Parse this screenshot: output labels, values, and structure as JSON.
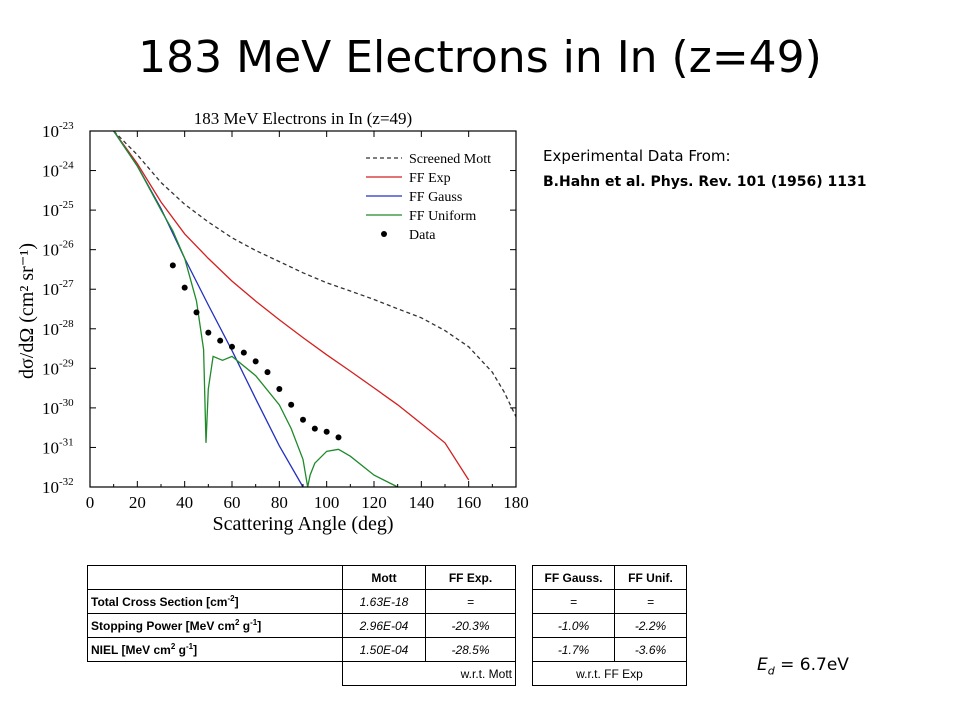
{
  "slide": {
    "title": "183 MeV Electrons in In (z=49)"
  },
  "source_note": {
    "line1": "Experimental Data From:",
    "line2": "B.Hahn et al. Phys. Rev. 101 (1956) 1131"
  },
  "chart_data": {
    "type": "line",
    "title": "183 MeV Electrons in In (z=49)",
    "xlabel": "Scattering Angle (deg)",
    "ylabel": "dσ/dΩ (cm² sr⁻¹)",
    "xlim": [
      0,
      180
    ],
    "ylim": [
      1e-32,
      1e-23
    ],
    "y_scale": "log",
    "x_ticks": [
      0,
      20,
      40,
      60,
      80,
      100,
      120,
      140,
      160,
      180
    ],
    "y_tick_exponents": [
      -23,
      -24,
      -25,
      -26,
      -27,
      -28,
      -29,
      -30,
      -31,
      -32
    ],
    "legend_position": "top-right",
    "series": [
      {
        "name": "Screened Mott",
        "color": "#333333",
        "style": "dashed",
        "x": [
          10,
          20,
          30,
          40,
          50,
          60,
          70,
          80,
          90,
          100,
          110,
          120,
          130,
          140,
          150,
          160,
          170,
          175,
          180
        ],
        "y": [
          1e-23,
          2.5e-24,
          5e-25,
          1.4e-25,
          5e-26,
          2e-26,
          9.5e-27,
          5e-27,
          2.6e-27,
          1.45e-27,
          9e-28,
          5.5e-28,
          3.2e-28,
          1.9e-28,
          9e-29,
          3.5e-29,
          8e-30,
          2.5e-30,
          6e-31
        ]
      },
      {
        "name": "FF Exp",
        "color": "#d42020",
        "style": "solid",
        "x": [
          10,
          20,
          30,
          40,
          50,
          60,
          70,
          80,
          90,
          100,
          110,
          120,
          130,
          140,
          150,
          160
        ],
        "y": [
          1e-23,
          1.5e-24,
          1.6e-25,
          2.5e-26,
          6e-27,
          1.6e-27,
          5e-28,
          1.7e-28,
          6e-29,
          2.2e-29,
          8.5e-30,
          3.2e-30,
          1.2e-30,
          4e-31,
          1.3e-31,
          1.5e-32
        ]
      },
      {
        "name": "FF Gauss",
        "color": "#2330c0",
        "style": "solid",
        "x": [
          10,
          20,
          30,
          40,
          50,
          60,
          70,
          80,
          90
        ],
        "y": [
          1e-23,
          1.3e-24,
          1.1e-25,
          6e-27,
          4e-28,
          2.8e-29,
          1.7e-30,
          1.1e-31,
          1e-32
        ]
      },
      {
        "name": "FF Uniform",
        "color": "#1f8a2a",
        "style": "solid",
        "x": [
          10,
          20,
          30,
          35,
          40,
          45,
          48,
          49,
          50,
          52,
          56,
          60,
          70,
          80,
          85,
          90,
          92,
          93,
          95,
          100,
          105,
          110,
          120,
          130
        ],
        "y": [
          1e-23,
          1.3e-24,
          1e-25,
          3e-26,
          6e-27,
          5e-28,
          3e-29,
          1.3e-31,
          3e-30,
          2e-29,
          1.6e-29,
          2e-29,
          6.5e-30,
          1.2e-30,
          3e-31,
          5e-32,
          1e-32,
          2e-32,
          4e-32,
          8e-32,
          9e-32,
          6e-32,
          2e-32,
          1e-32
        ]
      }
    ],
    "data_points": {
      "name": "Data",
      "x": [
        35,
        40,
        45,
        50,
        55,
        60,
        65,
        70,
        75,
        80,
        85,
        90,
        95,
        100,
        105
      ],
      "y": [
        4e-27,
        1.1e-27,
        2.6e-28,
        8e-29,
        5e-29,
        3.5e-29,
        2.5e-29,
        1.5e-29,
        8e-30,
        3e-30,
        1.2e-30,
        5e-31,
        3e-31,
        2.5e-31,
        1.8e-31
      ]
    }
  },
  "table_left": {
    "headers": [
      "",
      "Mott",
      "FF Exp."
    ],
    "rows": [
      {
        "label": "Total Cross Section [cm",
        "label_sup": "-2",
        "label_end": "]",
        "mott": "1.63E-18",
        "ffexp": "="
      },
      {
        "label": "Stopping Power [MeV cm",
        "label_sup": "2",
        "label_mid": " g",
        "label_sup2": "-1",
        "label_end": "]",
        "mott": "2.96E-04",
        "ffexp": "-20.3%"
      },
      {
        "label": "NIEL  [MeV cm",
        "label_sup": "2",
        "label_mid": " g",
        "label_sup2": "-1",
        "label_end": "]",
        "mott": "1.50E-04",
        "ffexp": "-28.5%"
      }
    ],
    "footer": "w.r.t. Mott"
  },
  "table_right": {
    "headers": [
      "FF Gauss.",
      "FF Unif."
    ],
    "rows": [
      {
        "gauss": "=",
        "unif": "="
      },
      {
        "gauss": "-1.0%",
        "unif": "-2.2%"
      },
      {
        "gauss": "-1.7%",
        "unif": "-3.6%"
      }
    ],
    "footer": "w.r.t. FF Exp"
  },
  "ed_label": {
    "symbol": "E",
    "subscript": "d",
    "value": " = 6.7eV"
  }
}
